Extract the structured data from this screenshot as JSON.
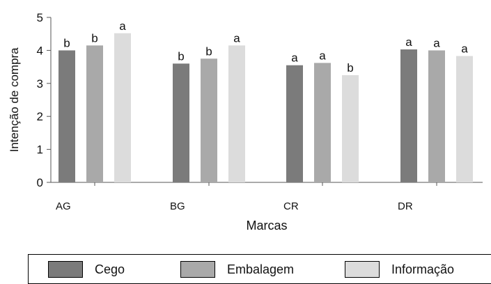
{
  "chart_data": {
    "type": "bar",
    "xlabel": "Marcas",
    "ylabel": "Intenção de compra",
    "ylim": [
      0,
      5
    ],
    "yticks": [
      "0",
      "1",
      "2",
      "3",
      "4",
      "5"
    ],
    "categories": [
      "AG",
      "BG",
      "CR",
      "DR"
    ],
    "series": [
      {
        "name": "Cego",
        "color": "#7b7b7b",
        "values": [
          4.0,
          3.6,
          3.55,
          4.03
        ],
        "labels": [
          "b",
          "b",
          "a",
          "a"
        ]
      },
      {
        "name": "Embalagem",
        "color": "#a9a9a9",
        "values": [
          4.15,
          3.75,
          3.62,
          4.0
        ],
        "labels": [
          "b",
          "b",
          "a",
          "a"
        ]
      },
      {
        "name": "Informação",
        "color": "#dcdcdc",
        "values": [
          4.52,
          4.15,
          3.25,
          3.83
        ],
        "labels": [
          "a",
          "a",
          "b",
          "a"
        ]
      }
    ],
    "grid": false,
    "legend_position": "bottom"
  }
}
